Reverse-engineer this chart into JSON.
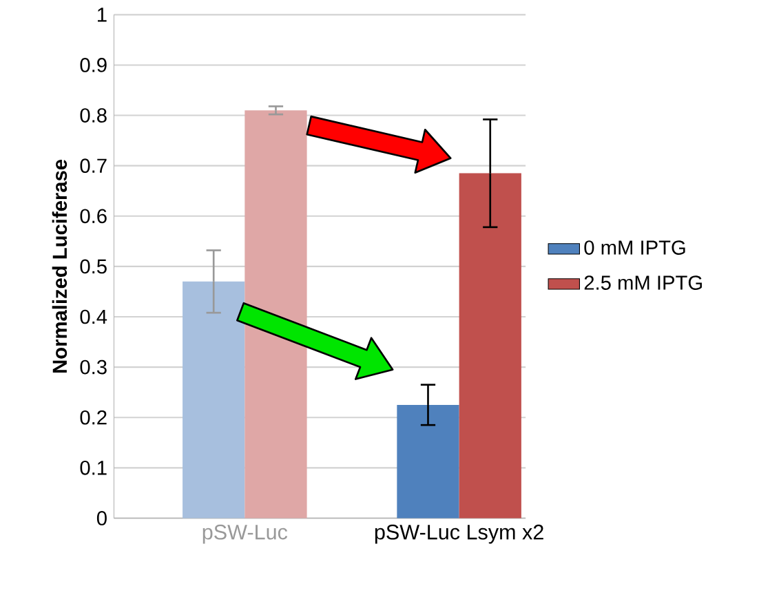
{
  "chart_data": {
    "type": "bar",
    "ylabel": "Normalized Luciferase",
    "categories": [
      "pSW-Luc",
      "pSW-Luc Lsym x2"
    ],
    "series": [
      {
        "name": "0 mM IPTG",
        "color": "#4f81bd",
        "colors": [
          "#a7bfde",
          "#4f81bd"
        ],
        "values": [
          0.47,
          0.225
        ],
        "errors": [
          0.062,
          0.04
        ]
      },
      {
        "name": "2.5 mM IPTG",
        "color": "#c0504d",
        "colors": [
          "#dfa7a6",
          "#c0504d"
        ],
        "values": [
          0.81,
          0.685
        ],
        "errors": [
          0.008,
          0.107
        ]
      }
    ],
    "ylim": [
      0,
      1
    ],
    "yticks": [
      0,
      0.1,
      0.2,
      0.3,
      0.4,
      0.5,
      0.6,
      0.7,
      0.8,
      0.9,
      1
    ],
    "grid": "y",
    "legend": "right"
  }
}
